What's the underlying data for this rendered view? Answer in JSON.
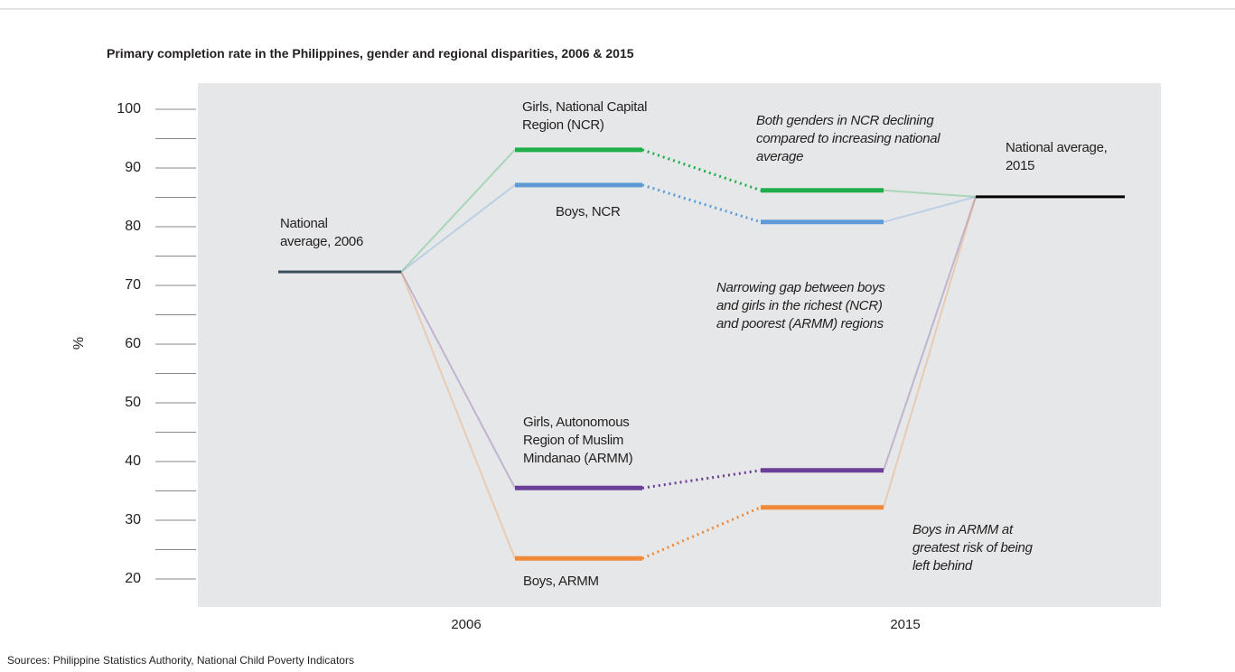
{
  "chart_data": {
    "type": "slope",
    "title": "Primary completion rate in the Philippines, gender and regional disparities, 2006 & 2015",
    "y_label": "%",
    "categories": [
      "2006",
      "2015"
    ],
    "ylim": [
      20,
      100
    ],
    "yticks": [
      20,
      30,
      40,
      50,
      60,
      70,
      80,
      90,
      100
    ],
    "minor_yticks": [
      25,
      35,
      45,
      55,
      65,
      75,
      85,
      95
    ],
    "baseline": {
      "names": [
        "National average, 2006",
        "National average, 2015"
      ],
      "colors": [
        "#3b4d58",
        "#000000"
      ],
      "values": [
        72.3,
        85.1
      ]
    },
    "series": [
      {
        "name": "Girls, National Capital Region (NCR)",
        "color": "#1fae4b",
        "values": [
          93.1,
          86.2
        ]
      },
      {
        "name": "Boys, NCR",
        "color": "#5e9bd6",
        "values": [
          87.1,
          80.8
        ]
      },
      {
        "name": "Girls, Autonomous Region of Muslim Mindanao (ARMM)",
        "color": "#6b3f98",
        "values": [
          35.5,
          38.5
        ]
      },
      {
        "name": "Boys, ARMM",
        "color": "#f08a3a",
        "values": [
          23.5,
          32.2
        ]
      }
    ],
    "annotations": [
      "Both genders in NCR declining compared to increasing national average",
      "Narrowing gap between boys and girls in the richest (NCR) and poorest (ARMM) regions",
      "Boys in ARMM at greatest risk of being left behind"
    ],
    "source": "Sources: Philippine Statistics Authority, National Child Poverty Indicators"
  }
}
